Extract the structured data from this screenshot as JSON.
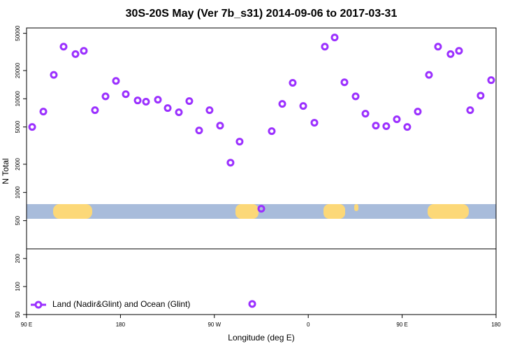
{
  "chart_data": [
    {
      "type": "scatter",
      "title": "30S-20S May (Ver 7b_s31)   2014-09-06 to 2017-03-31",
      "ylabel": "N Total",
      "log_y": true,
      "xlim": [
        90,
        540
      ],
      "ylim": [
        250,
        57000
      ],
      "yticks": [
        500,
        1000,
        2000,
        5000,
        10000,
        20000,
        50000
      ],
      "series": [
        {
          "color": "#9b30ff",
          "x": [
            95.4,
            106.1,
            116.1,
            125.5,
            136.9,
            144.9,
            155.6,
            165.7,
            175.7,
            185.1,
            196.5,
            204.5,
            215.9,
            225.3,
            236,
            246,
            255.4,
            265.4,
            275.5,
            285.5,
            294.2,
            315,
            325,
            335.1,
            345.1,
            355.2,
            365.9,
            375.9,
            385.3,
            394.7,
            405.4,
            414.8,
            424.8,
            434.8,
            444.9,
            454.9,
            465,
            475.7,
            484.4,
            496.4,
            504.5,
            515.2,
            525.2,
            535.3
          ],
          "values": [
            5000,
            7300,
            18000,
            36000,
            30000,
            32500,
            7550,
            10600,
            15500,
            11200,
            9600,
            9300,
            9770,
            7950,
            7170,
            9450,
            4590,
            7550,
            5170,
            2080,
            3490,
            670,
            4510,
            8810,
            14800,
            8370,
            5550,
            36000,
            45100,
            15000,
            10600,
            6930,
            5170,
            5100,
            6040,
            5000,
            7300,
            18000,
            36000,
            30000,
            32500,
            7550,
            10800,
            15800
          ]
        }
      ]
    },
    {
      "type": "scatter",
      "xlabel": "Longitude (deg E)",
      "log_y": true,
      "legend": "lower left",
      "xlim": [
        90,
        540
      ],
      "ylim": [
        50,
        254
      ],
      "xticks": [
        {
          "value": 90,
          "label": "90 E"
        },
        180,
        {
          "value": 270,
          "label": "90 W"
        },
        {
          "value": 360,
          "label": "0"
        },
        {
          "value": 450,
          "label": "90 E"
        },
        {
          "value": 540,
          "label": "180"
        }
      ],
      "yticks": [
        50,
        100,
        200
      ],
      "series": [
        {
          "name": "Land (Nadir&Glint) and Ocean (Glint)",
          "color": "#9b30ff",
          "x": [
            306.3
          ],
          "values": [
            65
          ]
        }
      ]
    }
  ]
}
